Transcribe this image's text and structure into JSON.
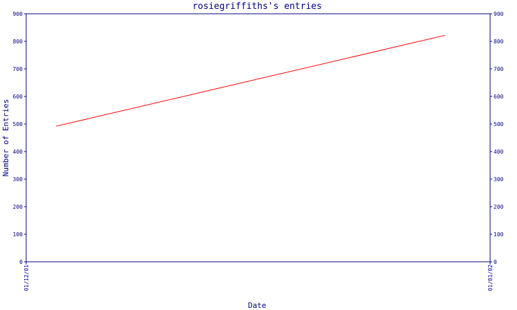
{
  "chart_data": {
    "type": "line",
    "title": "rosiegriffiths's entries",
    "xlabel": "Date",
    "ylabel": "Number of Entries",
    "ylim": [
      0,
      900
    ],
    "yticks": [
      0,
      100,
      200,
      300,
      400,
      500,
      600,
      700,
      800,
      900
    ],
    "x_tick_labels": [
      "01/12/01",
      "01/01/02"
    ],
    "xlim": [
      "2001-12-01",
      "2002-01-01"
    ],
    "series": [
      {
        "color": "#ff0000",
        "points": [
          {
            "x": "2001-12-03",
            "y": 492
          },
          {
            "x": "2001-12-29",
            "y": 822
          }
        ]
      }
    ],
    "grid": false,
    "axis_color": "#000080"
  }
}
